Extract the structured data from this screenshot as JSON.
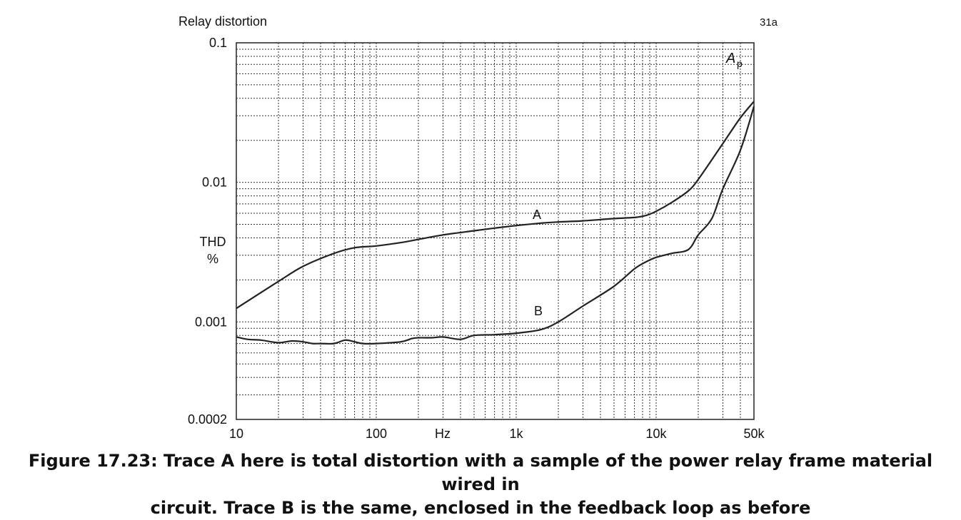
{
  "chart_data": {
    "type": "line",
    "title": "Relay distortion",
    "plot_code": "31a",
    "corner_label": "A",
    "corner_label_sub": "p",
    "xlabel": "Hz",
    "ylabel": [
      "THD",
      "%"
    ],
    "xscale": "log",
    "yscale": "log",
    "xlim": [
      10,
      50000
    ],
    "ylim": [
      0.0002,
      0.1
    ],
    "grid": true,
    "xticks": [
      {
        "value": 10,
        "label": "10"
      },
      {
        "value": 100,
        "label": "100"
      },
      {
        "value": 1000,
        "label": "1k"
      },
      {
        "value": 10000,
        "label": "10k"
      },
      {
        "value": 50000,
        "label": "50k"
      }
    ],
    "yticks": [
      {
        "value": 0.1,
        "label": "0.1"
      },
      {
        "value": 0.01,
        "label": "0.01"
      },
      {
        "value": 0.001,
        "label": "0.001"
      },
      {
        "value": 0.0002,
        "label": "0.0002"
      }
    ],
    "series": [
      {
        "name": "A",
        "label_at": {
          "x": 1500,
          "y": 0.0055
        },
        "x": [
          10,
          20,
          30,
          50,
          70,
          100,
          150,
          200,
          300,
          500,
          700,
          1000,
          1500,
          2000,
          3000,
          5000,
          7000,
          8500,
          10000,
          13000,
          17000,
          20000,
          30000,
          40000,
          50000
        ],
        "y": [
          0.00125,
          0.00195,
          0.0025,
          0.0031,
          0.0034,
          0.0035,
          0.0037,
          0.0039,
          0.0042,
          0.0045,
          0.0047,
          0.0049,
          0.0051,
          0.0052,
          0.0053,
          0.0055,
          0.0056,
          0.0058,
          0.0062,
          0.0072,
          0.0087,
          0.0105,
          0.019,
          0.029,
          0.038
        ]
      },
      {
        "name": "B",
        "label_at": {
          "x": 1500,
          "y": 0.00105
        },
        "x": [
          10,
          12,
          15,
          20,
          25,
          30,
          35,
          40,
          50,
          60,
          70,
          80,
          100,
          150,
          180,
          200,
          250,
          300,
          400,
          500,
          700,
          1000,
          1500,
          2000,
          3000,
          5000,
          7000,
          8500,
          10000,
          13000,
          17000,
          20000,
          25000,
          30000,
          40000,
          50000
        ],
        "y": [
          0.00078,
          0.00075,
          0.00074,
          0.00071,
          0.00073,
          0.00072,
          0.0007,
          0.0007,
          0.0007,
          0.00074,
          0.00072,
          0.0007,
          0.0007,
          0.00072,
          0.00076,
          0.00077,
          0.00077,
          0.00078,
          0.00075,
          0.0008,
          0.00081,
          0.00083,
          0.00088,
          0.001,
          0.0013,
          0.0018,
          0.0024,
          0.0027,
          0.0029,
          0.0031,
          0.0033,
          0.0042,
          0.0055,
          0.009,
          0.017,
          0.035
        ]
      }
    ]
  },
  "caption": {
    "line1": "Figure 17.23:  Trace A here is total distortion with a sample of the power relay frame material wired in",
    "line2": "circuit. Trace B is the same, enclosed in the feedback loop as before"
  }
}
